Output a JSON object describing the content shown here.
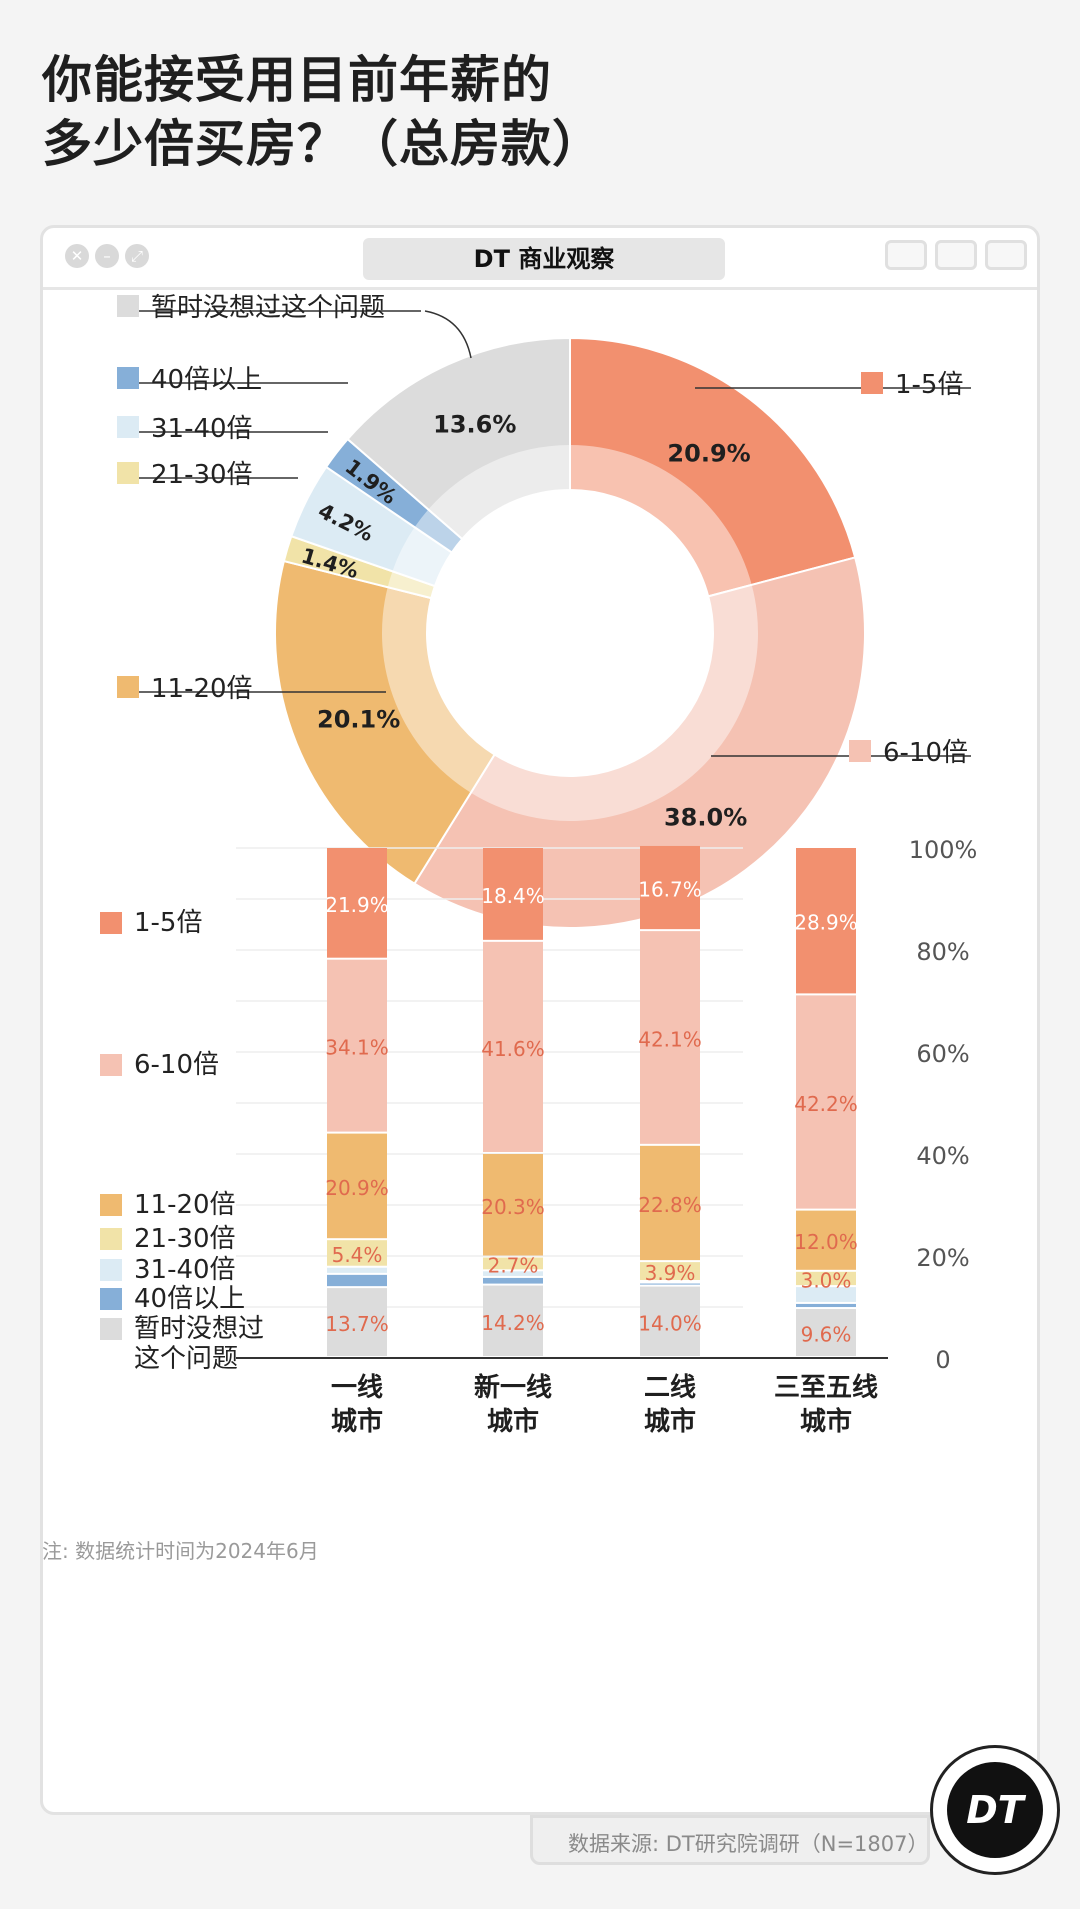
{
  "title_line1": "你能接受用目前年薪的",
  "title_line2": "多少倍买房？（总房款）",
  "window": {
    "label": "DT 商业观察"
  },
  "colors": {
    "c1_5": "#f2906f",
    "c6_10": "#f5c2b3",
    "c11_20": "#efba70",
    "c21_30": "#f1e3a8",
    "c31_40": "#dcebf4",
    "c40p": "#86afd8",
    "cnone": "#dcdcdc",
    "bar_label": "#e06a4e"
  },
  "chart_data": [
    {
      "type": "pie",
      "variant": "donut",
      "title": "",
      "slices": [
        {
          "label": "1-5倍",
          "value": 20.9,
          "value_label": "20.9%",
          "color": "#f2906f"
        },
        {
          "label": "6-10倍",
          "value": 38.0,
          "value_label": "38.0%",
          "color": "#f5c2b3"
        },
        {
          "label": "11-20倍",
          "value": 20.1,
          "value_label": "20.1%",
          "color": "#efba70"
        },
        {
          "label": "21-30倍",
          "value": 1.4,
          "value_label": "1.4%",
          "color": "#f1e3a8"
        },
        {
          "label": "31-40倍",
          "value": 4.2,
          "value_label": "4.2%",
          "color": "#dcebf4"
        },
        {
          "label": "40倍以上",
          "value": 1.9,
          "value_label": "1.9%",
          "color": "#86afd8"
        },
        {
          "label": "暂时没想过这个问题",
          "value": 13.6,
          "value_label": "13.6%",
          "color": "#dcdcdc"
        }
      ]
    },
    {
      "type": "bar",
      "variant": "stacked-100",
      "categories": [
        "一线\n城市",
        "新一线\n城市",
        "二线\n城市",
        "三至五线\n城市"
      ],
      "category_lines": [
        [
          "一线",
          "城市"
        ],
        [
          "新一线",
          "城市"
        ],
        [
          "二线",
          "城市"
        ],
        [
          "三至五线",
          "城市"
        ]
      ],
      "ylim": [
        0,
        100
      ],
      "yticks": [
        "0",
        "20%",
        "40%",
        "60%",
        "80%",
        "100%"
      ],
      "series": [
        {
          "name": "暂时没想过这个问题",
          "legend_lines": [
            "暂时没想过",
            "这个问题"
          ],
          "color": "#dcdcdc",
          "values": [
            13.7,
            14.2,
            14.0,
            9.6
          ],
          "labels": [
            "13.7%",
            "14.2%",
            "14.0%",
            "9.6%"
          ]
        },
        {
          "name": "40倍以上",
          "legend_lines": [
            "40倍以上"
          ],
          "color": "#86afd8",
          "values": [
            2.6,
            1.5,
            0.6,
            1.0
          ],
          "labels": [
            "",
            "",
            "",
            ""
          ]
        },
        {
          "name": "31-40倍",
          "legend_lines": [
            "31-40倍"
          ],
          "color": "#dcebf4",
          "values": [
            1.4,
            1.3,
            0.3,
            3.3
          ],
          "labels": [
            "",
            "",
            "",
            ""
          ]
        },
        {
          "name": "21-30倍",
          "legend_lines": [
            "21-30倍"
          ],
          "color": "#f1e3a8",
          "values": [
            5.4,
            2.7,
            3.9,
            3.0
          ],
          "labels": [
            "5.4%",
            "2.7%",
            "3.9%",
            "3.0%"
          ]
        },
        {
          "name": "11-20倍",
          "legend_lines": [
            "11-20倍"
          ],
          "color": "#efba70",
          "values": [
            20.9,
            20.3,
            22.8,
            12.0
          ],
          "labels": [
            "20.9%",
            "20.3%",
            "22.8%",
            "12.0%"
          ]
        },
        {
          "name": "6-10倍",
          "legend_lines": [
            "6-10倍"
          ],
          "color": "#f5c2b3",
          "values": [
            34.1,
            41.6,
            42.1,
            42.2
          ],
          "labels": [
            "34.1%",
            "41.6%",
            "42.1%",
            "42.2%"
          ]
        },
        {
          "name": "1-5倍",
          "legend_lines": [
            "1-5倍"
          ],
          "color": "#f2906f",
          "values": [
            21.9,
            18.4,
            16.7,
            28.9
          ],
          "labels": [
            "21.9%",
            "18.4%",
            "16.7%",
            "28.9%"
          ]
        }
      ]
    }
  ],
  "note": "注: 数据统计时间为2024年6月",
  "source": "数据来源: DT研究院调研（N=1807）",
  "badge": "DT"
}
